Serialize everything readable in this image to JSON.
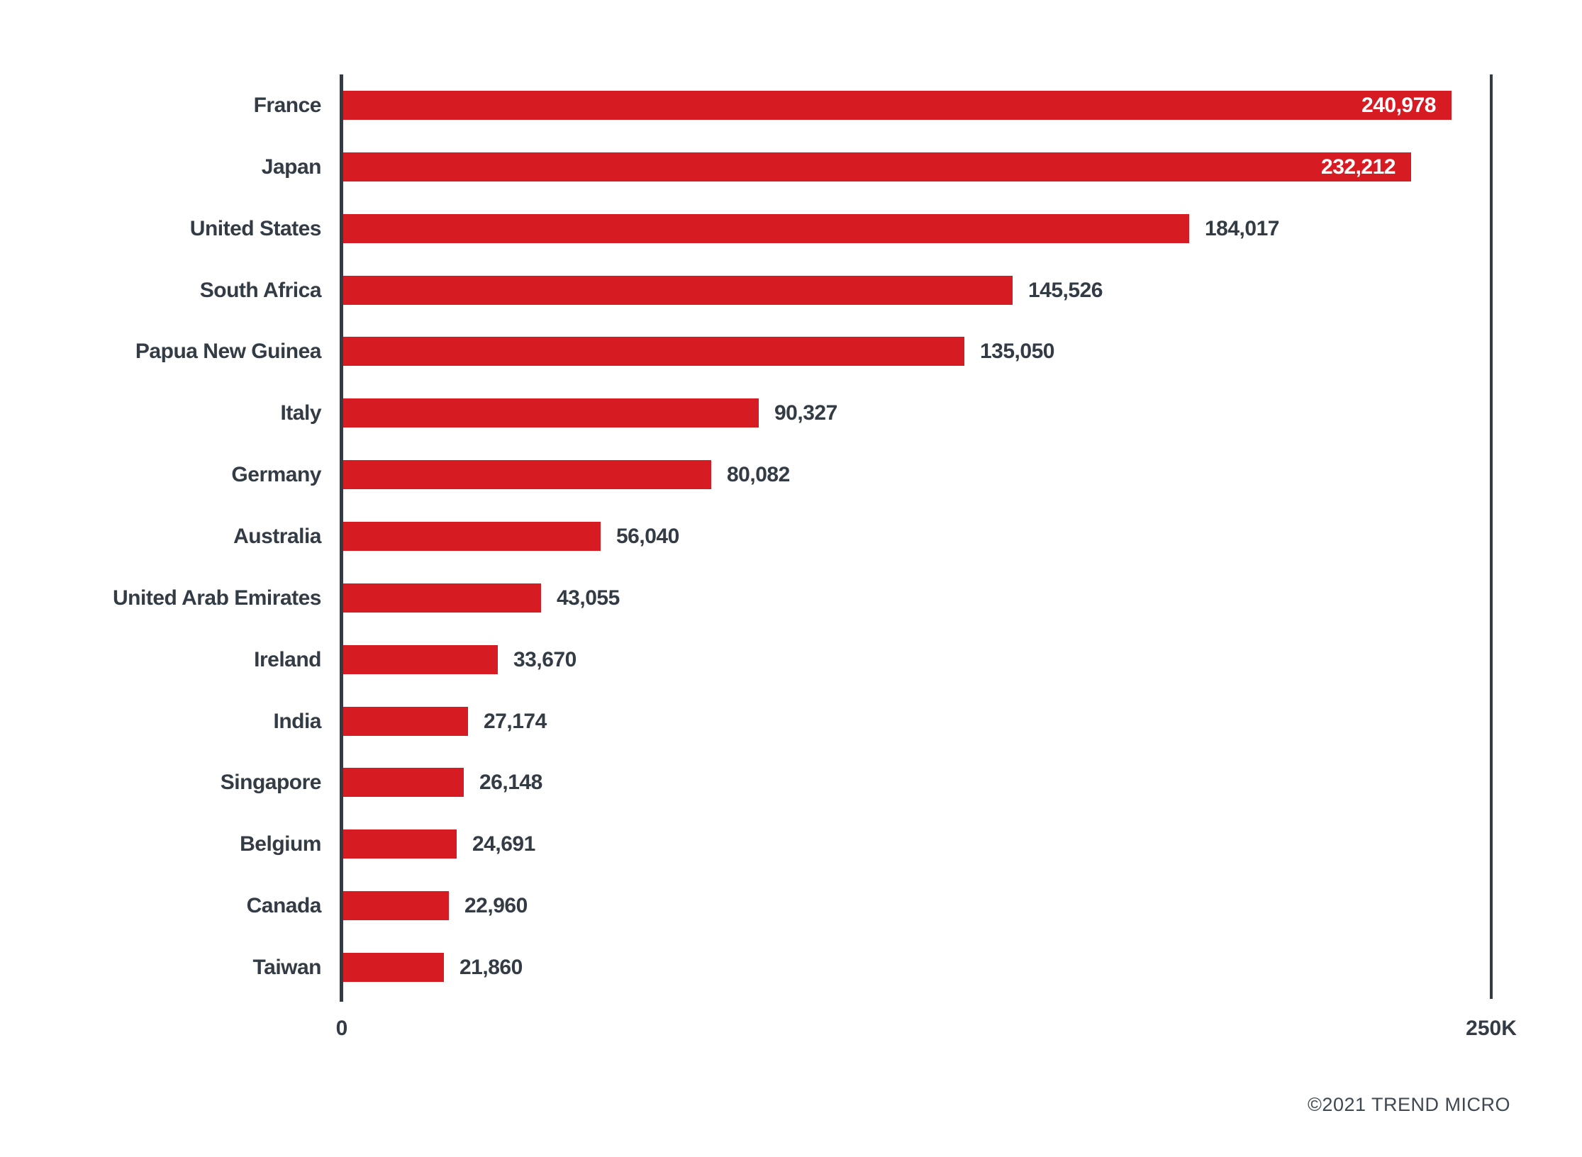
{
  "chart_data": {
    "type": "bar",
    "orientation": "horizontal",
    "categories": [
      "France",
      "Japan",
      "United States",
      "South Africa",
      "Papua New Guinea",
      "Italy",
      "Germany",
      "Australia",
      "United Arab Emirates",
      "Ireland",
      "India",
      "Singapore",
      "Belgium",
      "Canada",
      "Taiwan"
    ],
    "values": [
      240978,
      232212,
      184017,
      145526,
      135050,
      90327,
      80082,
      56040,
      43055,
      33670,
      27174,
      26148,
      24691,
      22960,
      21860
    ],
    "value_labels": [
      "240,978",
      "232,212",
      "184,017",
      "145,526",
      "135,050",
      "90,327",
      "80,082",
      "56,040",
      "43,055",
      "33,670",
      "27,174",
      "26,148",
      "24,691",
      "22,960",
      "21,860"
    ],
    "value_label_inside": [
      true,
      true,
      false,
      false,
      false,
      false,
      false,
      false,
      false,
      false,
      false,
      false,
      false,
      false,
      false
    ],
    "xlim": [
      0,
      250000
    ],
    "x_tick_labels": [
      "0",
      "250K"
    ],
    "grid": false,
    "legend": false,
    "bar_color": "#D71B23",
    "text_color": "#333C45",
    "inside_value_color": "#FFFFFF"
  },
  "footer": {
    "copyright": "©2021 TREND MICRO"
  }
}
